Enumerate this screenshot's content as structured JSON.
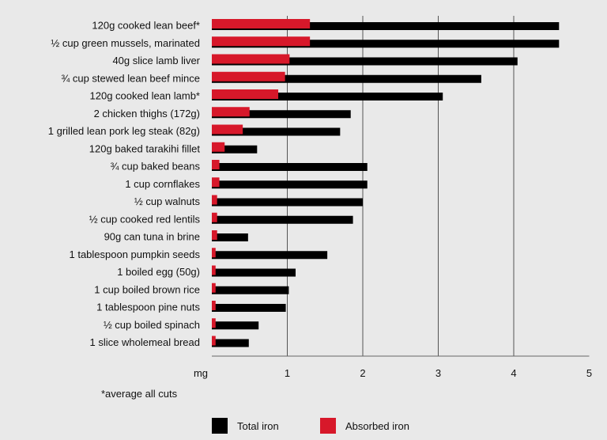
{
  "chart_data": {
    "type": "bar",
    "orientation": "horizontal",
    "categories": [
      "120g cooked lean beef*",
      "½ cup green mussels, marinated",
      "40g slice lamb liver",
      "¾ cup stewed lean beef mince",
      "120g cooked lean lamb*",
      "2 chicken thighs (172g)",
      "1 grilled lean pork leg steak (82g)",
      "120g baked tarakihi fillet",
      "¾ cup baked beans",
      "1 cup cornflakes",
      "½ cup walnuts",
      "½ cup cooked red lentils",
      "90g can tuna in brine",
      "1 tablespoon pumpkin seeds",
      "1 boiled egg (50g)",
      "1 cup boiled brown rice",
      "1 tablespoon pine nuts",
      "½ cup boiled spinach",
      "1 slice wholemeal bread"
    ],
    "series": [
      {
        "name": "Total iron",
        "color": "#000000",
        "values": [
          4.6,
          4.6,
          4.05,
          3.57,
          3.06,
          1.84,
          1.7,
          0.6,
          2.06,
          2.06,
          2.0,
          1.87,
          0.48,
          1.53,
          1.11,
          1.02,
          0.98,
          0.62,
          0.49
        ]
      },
      {
        "name": "Absorbed iron",
        "color": "#d7182a",
        "values": [
          1.3,
          1.3,
          1.03,
          0.97,
          0.88,
          0.5,
          0.41,
          0.17,
          0.1,
          0.1,
          0.07,
          0.07,
          0.07,
          0.05,
          0.05,
          0.05,
          0.05,
          0.05,
          0.05
        ]
      }
    ],
    "xlabel": "mg",
    "ticks": [
      "1",
      "2",
      "3",
      "4",
      "5"
    ],
    "xlim": [
      0,
      5
    ],
    "grid": true,
    "legend_position": "bottom",
    "footnote": "*average all cuts"
  }
}
